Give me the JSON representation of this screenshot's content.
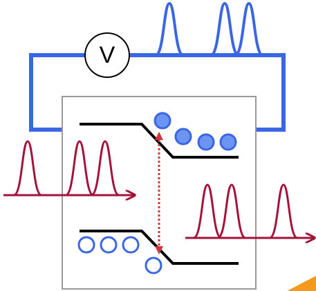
{
  "voltmeter": {
    "label": "V"
  }
}
